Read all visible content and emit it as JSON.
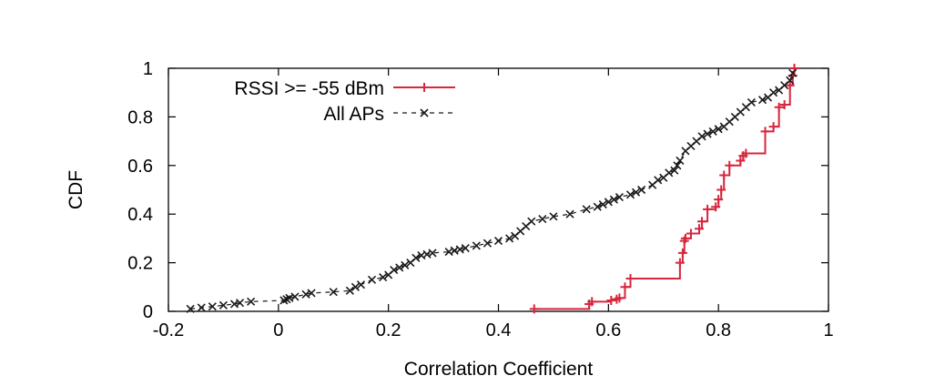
{
  "chart_data": {
    "type": "line",
    "xlabel": "Correlation Coefficient",
    "ylabel": "CDF",
    "xlim": [
      -0.2,
      1
    ],
    "ylim": [
      0,
      1
    ],
    "xticks": [
      "-0.2",
      "0",
      "0.2",
      "0.4",
      "0.6",
      "0.8",
      "1"
    ],
    "yticks": [
      "0",
      "0.2",
      "0.4",
      "0.6",
      "0.8",
      "1"
    ],
    "legend_position": "top-left",
    "series": [
      {
        "name": "RSSI >= -55 dBm",
        "color": "#d7263d",
        "marker": "plus",
        "line": "solid-step",
        "x": [
          0.465,
          0.565,
          0.57,
          0.605,
          0.615,
          0.62,
          0.63,
          0.64,
          0.73,
          0.735,
          0.738,
          0.74,
          0.75,
          0.765,
          0.77,
          0.78,
          0.795,
          0.8,
          0.805,
          0.81,
          0.82,
          0.84,
          0.845,
          0.85,
          0.885,
          0.9,
          0.91,
          0.92,
          0.93,
          0.935,
          0.938
        ],
        "y": [
          0.01,
          0.03,
          0.04,
          0.045,
          0.05,
          0.055,
          0.1,
          0.135,
          0.2,
          0.24,
          0.29,
          0.3,
          0.32,
          0.34,
          0.37,
          0.42,
          0.43,
          0.46,
          0.5,
          0.56,
          0.6,
          0.62,
          0.64,
          0.65,
          0.74,
          0.76,
          0.84,
          0.85,
          0.93,
          0.97,
          1.0
        ]
      },
      {
        "name": "All APs",
        "color": "#1a1a1a",
        "marker": "cross",
        "line": "dashed",
        "x": [
          -0.16,
          -0.14,
          -0.12,
          -0.1,
          -0.08,
          -0.07,
          -0.05,
          0.01,
          0.015,
          0.02,
          0.03,
          0.05,
          0.06,
          0.1,
          0.13,
          0.14,
          0.15,
          0.17,
          0.19,
          0.2,
          0.21,
          0.22,
          0.23,
          0.24,
          0.25,
          0.26,
          0.27,
          0.28,
          0.31,
          0.32,
          0.33,
          0.34,
          0.36,
          0.38,
          0.4,
          0.42,
          0.43,
          0.44,
          0.45,
          0.46,
          0.48,
          0.5,
          0.53,
          0.56,
          0.58,
          0.59,
          0.6,
          0.61,
          0.62,
          0.64,
          0.65,
          0.66,
          0.68,
          0.69,
          0.7,
          0.71,
          0.72,
          0.725,
          0.73,
          0.74,
          0.75,
          0.76,
          0.77,
          0.78,
          0.79,
          0.8,
          0.81,
          0.82,
          0.83,
          0.84,
          0.85,
          0.86,
          0.88,
          0.89,
          0.9,
          0.91,
          0.92,
          0.93,
          0.935
        ],
        "y": [
          0.01,
          0.015,
          0.02,
          0.025,
          0.03,
          0.035,
          0.04,
          0.045,
          0.05,
          0.055,
          0.06,
          0.07,
          0.075,
          0.08,
          0.085,
          0.1,
          0.11,
          0.13,
          0.14,
          0.15,
          0.17,
          0.18,
          0.19,
          0.2,
          0.22,
          0.23,
          0.235,
          0.24,
          0.245,
          0.25,
          0.255,
          0.26,
          0.27,
          0.28,
          0.29,
          0.3,
          0.31,
          0.33,
          0.35,
          0.37,
          0.38,
          0.39,
          0.4,
          0.42,
          0.43,
          0.44,
          0.45,
          0.46,
          0.47,
          0.48,
          0.49,
          0.5,
          0.52,
          0.54,
          0.55,
          0.57,
          0.58,
          0.6,
          0.62,
          0.66,
          0.68,
          0.7,
          0.72,
          0.73,
          0.74,
          0.75,
          0.76,
          0.78,
          0.8,
          0.82,
          0.84,
          0.86,
          0.87,
          0.88,
          0.9,
          0.91,
          0.93,
          0.95,
          0.98
        ]
      }
    ]
  }
}
